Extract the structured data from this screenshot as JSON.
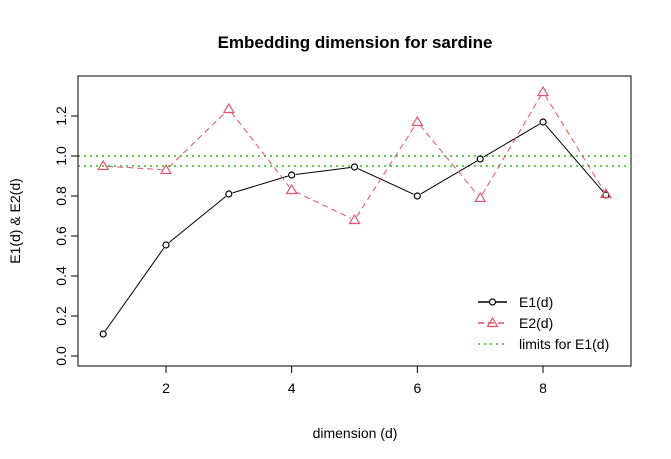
{
  "chart_data": {
    "type": "line",
    "title": "Embedding dimension for sardine",
    "xlabel": "dimension (d)",
    "ylabel": "E1(d) & E2(d)",
    "xlim": [
      0.6,
      9.4
    ],
    "ylim": [
      -0.05,
      1.4
    ],
    "x_ticks": [
      2,
      4,
      6,
      8
    ],
    "y_ticks": [
      0.0,
      0.2,
      0.4,
      0.6,
      0.8,
      1.0,
      1.2
    ],
    "x": [
      1,
      2,
      3,
      4,
      5,
      6,
      7,
      8,
      9
    ],
    "series": [
      {
        "name": "E1(d)",
        "values": [
          0.11,
          0.555,
          0.81,
          0.905,
          0.945,
          0.8,
          0.985,
          1.17,
          0.805
        ],
        "color": "#000000",
        "line": "solid",
        "marker": "circle"
      },
      {
        "name": "E2(d)",
        "values": [
          0.95,
          0.93,
          1.235,
          0.83,
          0.68,
          1.17,
          0.79,
          1.32,
          0.81
        ],
        "color": "#df536b",
        "line": "dashed",
        "marker": "triangle"
      }
    ],
    "hlines": {
      "name": "limits for E1(d)",
      "values": [
        0.95,
        1.0
      ],
      "color": "#61d04f",
      "line": "dotted"
    },
    "legend_position": "bottom-right",
    "grid": false
  }
}
